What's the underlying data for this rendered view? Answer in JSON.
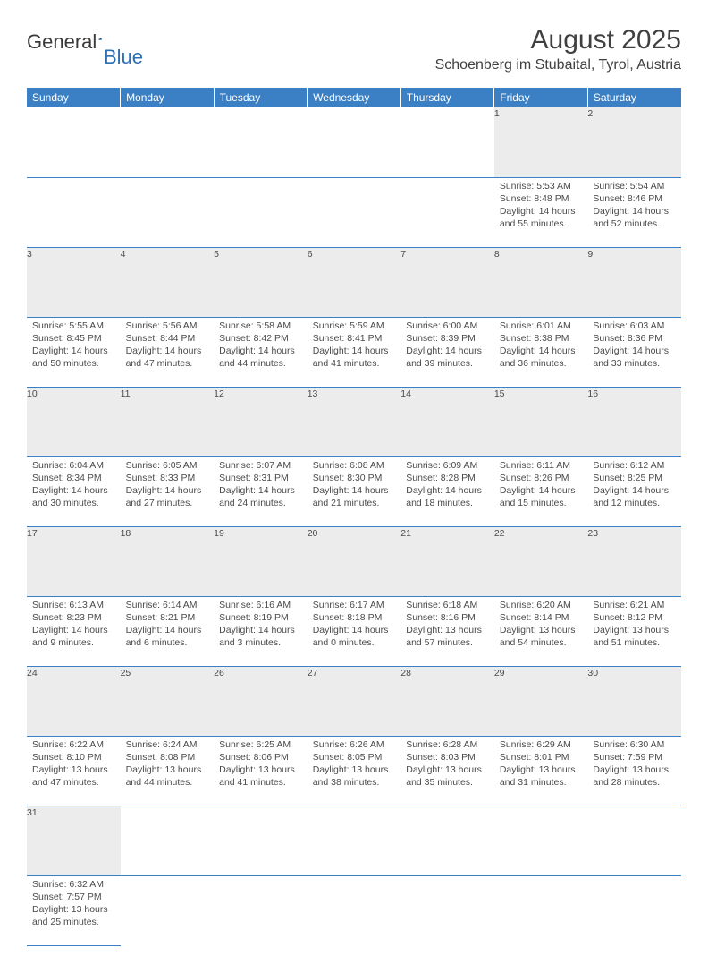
{
  "brand": {
    "text1": "General",
    "text2": "Blue"
  },
  "title": "August 2025",
  "location": "Schoenberg im Stubaital, Tyrol, Austria",
  "header_color": "#3b7fc4",
  "daynum_bg": "#ececec",
  "text_color": "#4a4a4a",
  "columns": [
    "Sunday",
    "Monday",
    "Tuesday",
    "Wednesday",
    "Thursday",
    "Friday",
    "Saturday"
  ],
  "weeks": [
    [
      null,
      null,
      null,
      null,
      null,
      {
        "d": "1",
        "sr": "Sunrise: 5:53 AM",
        "ss": "Sunset: 8:48 PM",
        "dl1": "Daylight: 14 hours",
        "dl2": "and 55 minutes."
      },
      {
        "d": "2",
        "sr": "Sunrise: 5:54 AM",
        "ss": "Sunset: 8:46 PM",
        "dl1": "Daylight: 14 hours",
        "dl2": "and 52 minutes."
      }
    ],
    [
      {
        "d": "3",
        "sr": "Sunrise: 5:55 AM",
        "ss": "Sunset: 8:45 PM",
        "dl1": "Daylight: 14 hours",
        "dl2": "and 50 minutes."
      },
      {
        "d": "4",
        "sr": "Sunrise: 5:56 AM",
        "ss": "Sunset: 8:44 PM",
        "dl1": "Daylight: 14 hours",
        "dl2": "and 47 minutes."
      },
      {
        "d": "5",
        "sr": "Sunrise: 5:58 AM",
        "ss": "Sunset: 8:42 PM",
        "dl1": "Daylight: 14 hours",
        "dl2": "and 44 minutes."
      },
      {
        "d": "6",
        "sr": "Sunrise: 5:59 AM",
        "ss": "Sunset: 8:41 PM",
        "dl1": "Daylight: 14 hours",
        "dl2": "and 41 minutes."
      },
      {
        "d": "7",
        "sr": "Sunrise: 6:00 AM",
        "ss": "Sunset: 8:39 PM",
        "dl1": "Daylight: 14 hours",
        "dl2": "and 39 minutes."
      },
      {
        "d": "8",
        "sr": "Sunrise: 6:01 AM",
        "ss": "Sunset: 8:38 PM",
        "dl1": "Daylight: 14 hours",
        "dl2": "and 36 minutes."
      },
      {
        "d": "9",
        "sr": "Sunrise: 6:03 AM",
        "ss": "Sunset: 8:36 PM",
        "dl1": "Daylight: 14 hours",
        "dl2": "and 33 minutes."
      }
    ],
    [
      {
        "d": "10",
        "sr": "Sunrise: 6:04 AM",
        "ss": "Sunset: 8:34 PM",
        "dl1": "Daylight: 14 hours",
        "dl2": "and 30 minutes."
      },
      {
        "d": "11",
        "sr": "Sunrise: 6:05 AM",
        "ss": "Sunset: 8:33 PM",
        "dl1": "Daylight: 14 hours",
        "dl2": "and 27 minutes."
      },
      {
        "d": "12",
        "sr": "Sunrise: 6:07 AM",
        "ss": "Sunset: 8:31 PM",
        "dl1": "Daylight: 14 hours",
        "dl2": "and 24 minutes."
      },
      {
        "d": "13",
        "sr": "Sunrise: 6:08 AM",
        "ss": "Sunset: 8:30 PM",
        "dl1": "Daylight: 14 hours",
        "dl2": "and 21 minutes."
      },
      {
        "d": "14",
        "sr": "Sunrise: 6:09 AM",
        "ss": "Sunset: 8:28 PM",
        "dl1": "Daylight: 14 hours",
        "dl2": "and 18 minutes."
      },
      {
        "d": "15",
        "sr": "Sunrise: 6:11 AM",
        "ss": "Sunset: 8:26 PM",
        "dl1": "Daylight: 14 hours",
        "dl2": "and 15 minutes."
      },
      {
        "d": "16",
        "sr": "Sunrise: 6:12 AM",
        "ss": "Sunset: 8:25 PM",
        "dl1": "Daylight: 14 hours",
        "dl2": "and 12 minutes."
      }
    ],
    [
      {
        "d": "17",
        "sr": "Sunrise: 6:13 AM",
        "ss": "Sunset: 8:23 PM",
        "dl1": "Daylight: 14 hours",
        "dl2": "and 9 minutes."
      },
      {
        "d": "18",
        "sr": "Sunrise: 6:14 AM",
        "ss": "Sunset: 8:21 PM",
        "dl1": "Daylight: 14 hours",
        "dl2": "and 6 minutes."
      },
      {
        "d": "19",
        "sr": "Sunrise: 6:16 AM",
        "ss": "Sunset: 8:19 PM",
        "dl1": "Daylight: 14 hours",
        "dl2": "and 3 minutes."
      },
      {
        "d": "20",
        "sr": "Sunrise: 6:17 AM",
        "ss": "Sunset: 8:18 PM",
        "dl1": "Daylight: 14 hours",
        "dl2": "and 0 minutes."
      },
      {
        "d": "21",
        "sr": "Sunrise: 6:18 AM",
        "ss": "Sunset: 8:16 PM",
        "dl1": "Daylight: 13 hours",
        "dl2": "and 57 minutes."
      },
      {
        "d": "22",
        "sr": "Sunrise: 6:20 AM",
        "ss": "Sunset: 8:14 PM",
        "dl1": "Daylight: 13 hours",
        "dl2": "and 54 minutes."
      },
      {
        "d": "23",
        "sr": "Sunrise: 6:21 AM",
        "ss": "Sunset: 8:12 PM",
        "dl1": "Daylight: 13 hours",
        "dl2": "and 51 minutes."
      }
    ],
    [
      {
        "d": "24",
        "sr": "Sunrise: 6:22 AM",
        "ss": "Sunset: 8:10 PM",
        "dl1": "Daylight: 13 hours",
        "dl2": "and 47 minutes."
      },
      {
        "d": "25",
        "sr": "Sunrise: 6:24 AM",
        "ss": "Sunset: 8:08 PM",
        "dl1": "Daylight: 13 hours",
        "dl2": "and 44 minutes."
      },
      {
        "d": "26",
        "sr": "Sunrise: 6:25 AM",
        "ss": "Sunset: 8:06 PM",
        "dl1": "Daylight: 13 hours",
        "dl2": "and 41 minutes."
      },
      {
        "d": "27",
        "sr": "Sunrise: 6:26 AM",
        "ss": "Sunset: 8:05 PM",
        "dl1": "Daylight: 13 hours",
        "dl2": "and 38 minutes."
      },
      {
        "d": "28",
        "sr": "Sunrise: 6:28 AM",
        "ss": "Sunset: 8:03 PM",
        "dl1": "Daylight: 13 hours",
        "dl2": "and 35 minutes."
      },
      {
        "d": "29",
        "sr": "Sunrise: 6:29 AM",
        "ss": "Sunset: 8:01 PM",
        "dl1": "Daylight: 13 hours",
        "dl2": "and 31 minutes."
      },
      {
        "d": "30",
        "sr": "Sunrise: 6:30 AM",
        "ss": "Sunset: 7:59 PM",
        "dl1": "Daylight: 13 hours",
        "dl2": "and 28 minutes."
      }
    ],
    [
      {
        "d": "31",
        "sr": "Sunrise: 6:32 AM",
        "ss": "Sunset: 7:57 PM",
        "dl1": "Daylight: 13 hours",
        "dl2": "and 25 minutes."
      },
      null,
      null,
      null,
      null,
      null,
      null
    ]
  ]
}
